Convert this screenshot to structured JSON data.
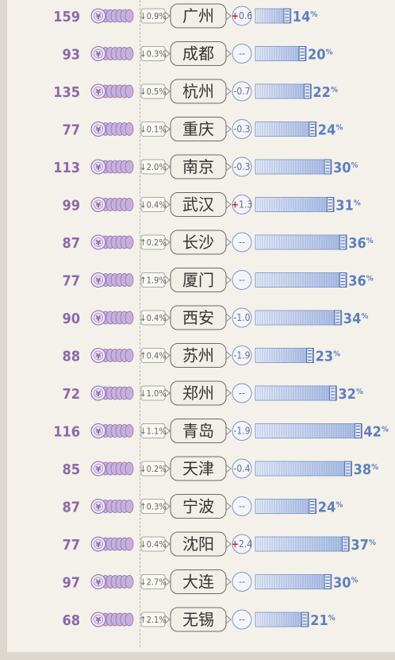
{
  "chart_data": {
    "type": "table",
    "colors": {
      "price": "#8a6aa8",
      "share": "#5d7fbf",
      "up": "#d2232a"
    },
    "rows": [
      {
        "price": "159",
        "price_change": "↓0.9%",
        "city": "广州",
        "share_change": "0.6",
        "share_change_sign": "+",
        "share": "14",
        "share_pct": 14
      },
      {
        "price": "93",
        "price_change": "↓0.3%",
        "city": "成都",
        "share_change": "--",
        "share_change_sign": "",
        "share": "20",
        "share_pct": 20
      },
      {
        "price": "135",
        "price_change": "↓0.5%",
        "city": "杭州",
        "share_change": "-0.7",
        "share_change_sign": "",
        "share": "22",
        "share_pct": 22
      },
      {
        "price": "77",
        "price_change": "↓0.1%",
        "city": "重庆",
        "share_change": "-0.3",
        "share_change_sign": "",
        "share": "24",
        "share_pct": 24
      },
      {
        "price": "113",
        "price_change": "↓2.0%",
        "city": "南京",
        "share_change": "-0.3",
        "share_change_sign": "",
        "share": "30",
        "share_pct": 30
      },
      {
        "price": "99",
        "price_change": "↓0.4%",
        "city": "武汉",
        "share_change": "1.3",
        "share_change_sign": "+",
        "share": "31",
        "share_pct": 31
      },
      {
        "price": "87",
        "price_change": "↑0.2%",
        "city": "长沙",
        "share_change": "--",
        "share_change_sign": "",
        "share": "36",
        "share_pct": 36
      },
      {
        "price": "77",
        "price_change": "↑1.9%",
        "city": "厦门",
        "share_change": "--",
        "share_change_sign": "",
        "share": "36",
        "share_pct": 36
      },
      {
        "price": "90",
        "price_change": "↓0.4%",
        "city": "西安",
        "share_change": "-1.0",
        "share_change_sign": "",
        "share": "34",
        "share_pct": 34
      },
      {
        "price": "88",
        "price_change": "↑0.4%",
        "city": "苏州",
        "share_change": "-1.9",
        "share_change_sign": "",
        "share": "23",
        "share_pct": 23
      },
      {
        "price": "72",
        "price_change": "↓1.0%",
        "city": "郑州",
        "share_change": "--",
        "share_change_sign": "",
        "share": "32",
        "share_pct": 32
      },
      {
        "price": "116",
        "price_change": "↓1.1%",
        "city": "青岛",
        "share_change": "-1.9",
        "share_change_sign": "",
        "share": "42",
        "share_pct": 42
      },
      {
        "price": "85",
        "price_change": "↓0.2%",
        "city": "天津",
        "share_change": "-0.4",
        "share_change_sign": "",
        "share": "38",
        "share_pct": 38
      },
      {
        "price": "87",
        "price_change": "↑0.3%",
        "city": "宁波",
        "share_change": "--",
        "share_change_sign": "",
        "share": "24",
        "share_pct": 24
      },
      {
        "price": "77",
        "price_change": "↓0.4%",
        "city": "沈阳",
        "share_change": "2.4",
        "share_change_sign": "+",
        "share": "37",
        "share_pct": 37
      },
      {
        "price": "97",
        "price_change": "↓2.7%",
        "city": "大连",
        "share_change": "--",
        "share_change_sign": "",
        "share": "30",
        "share_pct": 30
      },
      {
        "price": "68",
        "price_change": "↑2.1%",
        "city": "无锡",
        "share_change": "--",
        "share_change_sign": "",
        "share": "21",
        "share_pct": 21
      }
    ]
  }
}
